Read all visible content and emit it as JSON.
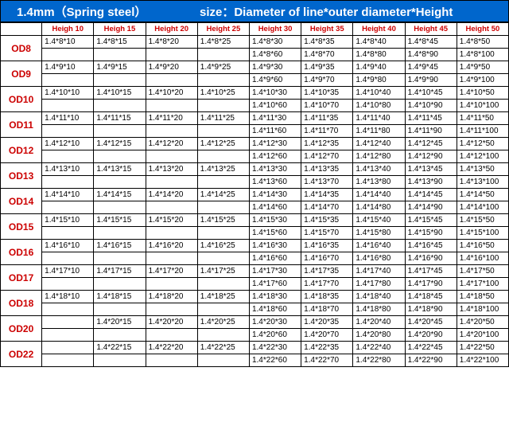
{
  "header": {
    "title_left": "1.4mm（Spring steel）",
    "title_right": "size：Diameter of line*outer diameter*Height"
  },
  "columns": [
    "",
    "Heigh 10",
    "Heigh 15",
    "Height 20",
    "Height 25",
    "Height 30",
    "Height 35",
    "Height 40",
    "Height 45",
    "Height 50"
  ],
  "groups": [
    {
      "label": "OD8",
      "rows": [
        [
          "1.4*8*10",
          "1.4*8*15",
          "1.4*8*20",
          "1.4*8*25",
          "1.4*8*30",
          "1.4*8*35",
          "1.4*8*40",
          "1.4*8*45",
          "1.4*8*50"
        ],
        [
          "",
          "",
          "",
          "",
          "1.4*8*60",
          "1.4*8*70",
          "1.4*8*80",
          "1.4*8*90",
          "1.4*8*100"
        ]
      ]
    },
    {
      "label": "OD9",
      "rows": [
        [
          "1.4*9*10",
          "1.4*9*15",
          "1.4*9*20",
          "1.4*9*25",
          "1.4*9*30",
          "1.4*9*35",
          "1.4*9*40",
          "1.4*9*45",
          "1.4*9*50"
        ],
        [
          "",
          "",
          "",
          "",
          "1.4*9*60",
          "1.4*9*70",
          "1.4*9*80",
          "1.4*9*90",
          "1.4*9*100"
        ]
      ]
    },
    {
      "label": "OD10",
      "rows": [
        [
          "1.4*10*10",
          "1.4*10*15",
          "1.4*10*20",
          "1.4*10*25",
          "1.4*10*30",
          "1.4*10*35",
          "1.4*10*40",
          "1.4*10*45",
          "1.4*10*50"
        ],
        [
          "",
          "",
          "",
          "",
          "1.4*10*60",
          "1.4*10*70",
          "1.4*10*80",
          "1.4*10*90",
          "1.4*10*100"
        ]
      ]
    },
    {
      "label": "OD11",
      "rows": [
        [
          "1.4*11*10",
          "1.4*11*15",
          "1.4*11*20",
          "1.4*11*25",
          "1.4*11*30",
          "1.4*11*35",
          "1.4*11*40",
          "1.4*11*45",
          "1.4*11*50"
        ],
        [
          "",
          "",
          "",
          "",
          "1.4*11*60",
          "1.4*11*70",
          "1.4*11*80",
          "1.4*11*90",
          "1.4*11*100"
        ]
      ]
    },
    {
      "label": "OD12",
      "rows": [
        [
          "1.4*12*10",
          "1.4*12*15",
          "1.4*12*20",
          "1.4*12*25",
          "1.4*12*30",
          "1.4*12*35",
          "1.4*12*40",
          "1.4*12*45",
          "1.4*12*50"
        ],
        [
          "",
          "",
          "",
          "",
          "1.4*12*60",
          "1.4*12*70",
          "1.4*12*80",
          "1.4*12*90",
          "1.4*12*100"
        ]
      ]
    },
    {
      "label": "OD13",
      "rows": [
        [
          "1.4*13*10",
          "1.4*13*15",
          "1.4*13*20",
          "1.4*13*25",
          "1.4*13*30",
          "1.4*13*35",
          "1.4*13*40",
          "1.4*13*45",
          "1.4*13*50"
        ],
        [
          "",
          "",
          "",
          "",
          "1.4*13*60",
          "1.4*13*70",
          "1.4*13*80",
          "1.4*13*90",
          "1.4*13*100"
        ]
      ]
    },
    {
      "label": "OD14",
      "rows": [
        [
          "1.4*14*10",
          "1.4*14*15",
          "1.4*14*20",
          "1.4*14*25",
          "1.4*14*30",
          "1.4*14*35",
          "1.4*14*40",
          "1.4*14*45",
          "1.4*14*50"
        ],
        [
          "",
          "",
          "",
          "",
          "1.4*14*60",
          "1.4*14*70",
          "1.4*14*80",
          "1.4*14*90",
          "1.4*14*100"
        ]
      ]
    },
    {
      "label": "OD15",
      "rows": [
        [
          "1.4*15*10",
          "1.4*15*15",
          "1.4*15*20",
          "1.4*15*25",
          "1.4*15*30",
          "1.4*15*35",
          "1.4*15*40",
          "1.4*15*45",
          "1.4*15*50"
        ],
        [
          "",
          "",
          "",
          "",
          "1.4*15*60",
          "1.4*15*70",
          "1.4*15*80",
          "1.4*15*90",
          "1.4*15*100"
        ]
      ]
    },
    {
      "label": "OD16",
      "rows": [
        [
          "1.4*16*10",
          "1.4*16*15",
          "1.4*16*20",
          "1.4*16*25",
          "1.4*16*30",
          "1.4*16*35",
          "1.4*16*40",
          "1.4*16*45",
          "1.4*16*50"
        ],
        [
          "",
          "",
          "",
          "",
          "1.4*16*60",
          "1.4*16*70",
          "1.4*16*80",
          "1.4*16*90",
          "1.4*16*100"
        ]
      ]
    },
    {
      "label": "OD17",
      "rows": [
        [
          "1.4*17*10",
          "1.4*17*15",
          "1.4*17*20",
          "1.4*17*25",
          "1.4*17*30",
          "1.4*17*35",
          "1.4*17*40",
          "1.4*17*45",
          "1.4*17*50"
        ],
        [
          "",
          "",
          "",
          "",
          "1.4*17*60",
          "1.4*17*70",
          "1.4*17*80",
          "1.4*17*90",
          "1.4*17*100"
        ]
      ]
    },
    {
      "label": "OD18",
      "rows": [
        [
          "1.4*18*10",
          "1.4*18*15",
          "1.4*18*20",
          "1.4*18*25",
          "1.4*18*30",
          "1.4*18*35",
          "1.4*18*40",
          "1.4*18*45",
          "1.4*18*50"
        ],
        [
          "",
          "",
          "",
          "",
          "1.4*18*60",
          "1.4*18*70",
          "1.4*18*80",
          "1.4*18*90",
          "1.4*18*100"
        ]
      ]
    },
    {
      "label": "OD20",
      "rows": [
        [
          "",
          "1.4*20*15",
          "1.4*20*20",
          "1.4*20*25",
          "1.4*20*30",
          "1.4*20*35",
          "1.4*20*40",
          "1.4*20*45",
          "1.4*20*50"
        ],
        [
          "",
          "",
          "",
          "",
          "1.4*20*60",
          "1.4*20*70",
          "1.4*20*80",
          "1.4*20*90",
          "1.4*20*100"
        ]
      ]
    },
    {
      "label": "OD22",
      "rows": [
        [
          "",
          "1.4*22*15",
          "1.4*22*20",
          "1.4*22*25",
          "1.4*22*30",
          "1.4*22*35",
          "1.4*22*40",
          "1.4*22*45",
          "1.4*22*50"
        ],
        [
          "",
          "",
          "",
          "",
          "1.4*22*60",
          "1.4*22*70",
          "1.4*22*80",
          "1.4*22*90",
          "1.4*22*100"
        ]
      ]
    }
  ],
  "style": {
    "header_bg": "#0066cc",
    "header_text": "#ffffff",
    "accent_color": "#cc0000",
    "border_color": "#000000",
    "cell_fontsize": 10
  }
}
